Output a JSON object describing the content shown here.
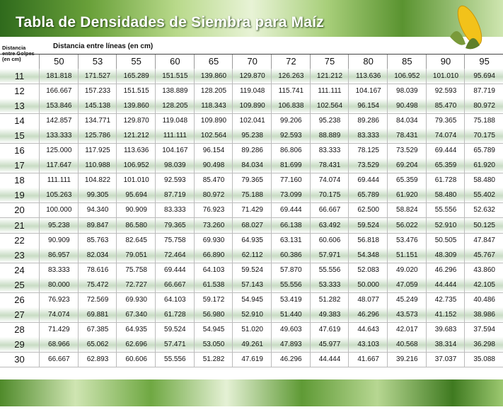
{
  "header": {
    "title": "Tabla de Densidades de Siembra para Maíz"
  },
  "table": {
    "row_header": "Distancia entre Golpes (en cm)",
    "column_header": "Distancia entre líneas (en cm)",
    "columns": [
      "50",
      "53",
      "55",
      "60",
      "65",
      "70",
      "72",
      "75",
      "80",
      "85",
      "90",
      "95"
    ],
    "rows": [
      {
        "label": "11",
        "values": [
          "181.818",
          "171.527",
          "165.289",
          "151.515",
          "139.860",
          "129.870",
          "126.263",
          "121.212",
          "113.636",
          "106.952",
          "101.010",
          "95.694"
        ]
      },
      {
        "label": "12",
        "values": [
          "166.667",
          "157.233",
          "151.515",
          "138.889",
          "128.205",
          "119.048",
          "115.741",
          "111.111",
          "104.167",
          "98.039",
          "92.593",
          "87.719"
        ]
      },
      {
        "label": "13",
        "values": [
          "153.846",
          "145.138",
          "139.860",
          "128.205",
          "118.343",
          "109.890",
          "106.838",
          "102.564",
          "96.154",
          "90.498",
          "85.470",
          "80.972"
        ]
      },
      {
        "label": "14",
        "values": [
          "142.857",
          "134.771",
          "129.870",
          "119.048",
          "109.890",
          "102.041",
          "99.206",
          "95.238",
          "89.286",
          "84.034",
          "79.365",
          "75.188"
        ]
      },
      {
        "label": "15",
        "values": [
          "133.333",
          "125.786",
          "121.212",
          "111.111",
          "102.564",
          "95.238",
          "92.593",
          "88.889",
          "83.333",
          "78.431",
          "74.074",
          "70.175"
        ]
      },
      {
        "label": "16",
        "values": [
          "125.000",
          "117.925",
          "113.636",
          "104.167",
          "96.154",
          "89.286",
          "86.806",
          "83.333",
          "78.125",
          "73.529",
          "69.444",
          "65.789"
        ]
      },
      {
        "label": "17",
        "values": [
          "117.647",
          "110.988",
          "106.952",
          "98.039",
          "90.498",
          "84.034",
          "81.699",
          "78.431",
          "73.529",
          "69.204",
          "65.359",
          "61.920"
        ]
      },
      {
        "label": "18",
        "values": [
          "111.111",
          "104.822",
          "101.010",
          "92.593",
          "85.470",
          "79.365",
          "77.160",
          "74.074",
          "69.444",
          "65.359",
          "61.728",
          "58.480"
        ]
      },
      {
        "label": "19",
        "values": [
          "105.263",
          "99.305",
          "95.694",
          "87.719",
          "80.972",
          "75.188",
          "73.099",
          "70.175",
          "65.789",
          "61.920",
          "58.480",
          "55.402"
        ]
      },
      {
        "label": "20",
        "values": [
          "100.000",
          "94.340",
          "90.909",
          "83.333",
          "76.923",
          "71.429",
          "69.444",
          "66.667",
          "62.500",
          "58.824",
          "55.556",
          "52.632"
        ]
      },
      {
        "label": "21",
        "values": [
          "95.238",
          "89.847",
          "86.580",
          "79.365",
          "73.260",
          "68.027",
          "66.138",
          "63.492",
          "59.524",
          "56.022",
          "52.910",
          "50.125"
        ]
      },
      {
        "label": "22",
        "values": [
          "90.909",
          "85.763",
          "82.645",
          "75.758",
          "69.930",
          "64.935",
          "63.131",
          "60.606",
          "56.818",
          "53.476",
          "50.505",
          "47.847"
        ]
      },
      {
        "label": "23",
        "values": [
          "86.957",
          "82.034",
          "79.051",
          "72.464",
          "66.890",
          "62.112",
          "60.386",
          "57.971",
          "54.348",
          "51.151",
          "48.309",
          "45.767"
        ]
      },
      {
        "label": "24",
        "values": [
          "83.333",
          "78.616",
          "75.758",
          "69.444",
          "64.103",
          "59.524",
          "57.870",
          "55.556",
          "52.083",
          "49.020",
          "46.296",
          "43.860"
        ]
      },
      {
        "label": "25",
        "values": [
          "80.000",
          "75.472",
          "72.727",
          "66.667",
          "61.538",
          "57.143",
          "55.556",
          "53.333",
          "50.000",
          "47.059",
          "44.444",
          "42.105"
        ]
      },
      {
        "label": "26",
        "values": [
          "76.923",
          "72.569",
          "69.930",
          "64.103",
          "59.172",
          "54.945",
          "53.419",
          "51.282",
          "48.077",
          "45.249",
          "42.735",
          "40.486"
        ]
      },
      {
        "label": "27",
        "values": [
          "74.074",
          "69.881",
          "67.340",
          "61.728",
          "56.980",
          "52.910",
          "51.440",
          "49.383",
          "46.296",
          "43.573",
          "41.152",
          "38.986"
        ]
      },
      {
        "label": "28",
        "values": [
          "71.429",
          "67.385",
          "64.935",
          "59.524",
          "54.945",
          "51.020",
          "49.603",
          "47.619",
          "44.643",
          "42.017",
          "39.683",
          "37.594"
        ]
      },
      {
        "label": "29",
        "values": [
          "68.966",
          "65.062",
          "62.696",
          "57.471",
          "53.050",
          "49.261",
          "47.893",
          "45.977",
          "43.103",
          "40.568",
          "38.314",
          "36.298"
        ]
      },
      {
        "label": "30",
        "values": [
          "66.667",
          "62.893",
          "60.606",
          "55.556",
          "51.282",
          "47.619",
          "46.296",
          "44.444",
          "41.667",
          "39.216",
          "37.037",
          "35.088"
        ]
      }
    ]
  }
}
